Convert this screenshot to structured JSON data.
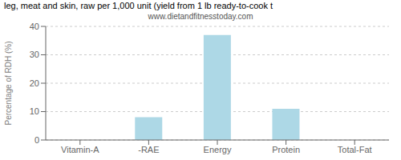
{
  "chart_data": {
    "type": "bar",
    "title": "leg, meat and skin, raw per 1,000 unit (yield from 1 lb ready-to-cook t",
    "subtitle": "www.dietandfitnesstoday.com",
    "categories": [
      "Vitamin-A",
      "-RAE",
      "Energy",
      "Protein",
      "Total-Fat"
    ],
    "values": [
      0,
      8,
      37,
      11,
      0
    ],
    "color": "#add8e6",
    "ylabel": "Percentage of RDH (%)",
    "ylim": [
      0,
      40
    ],
    "yticks": [
      0,
      10,
      20,
      30,
      40
    ],
    "grid": true
  }
}
